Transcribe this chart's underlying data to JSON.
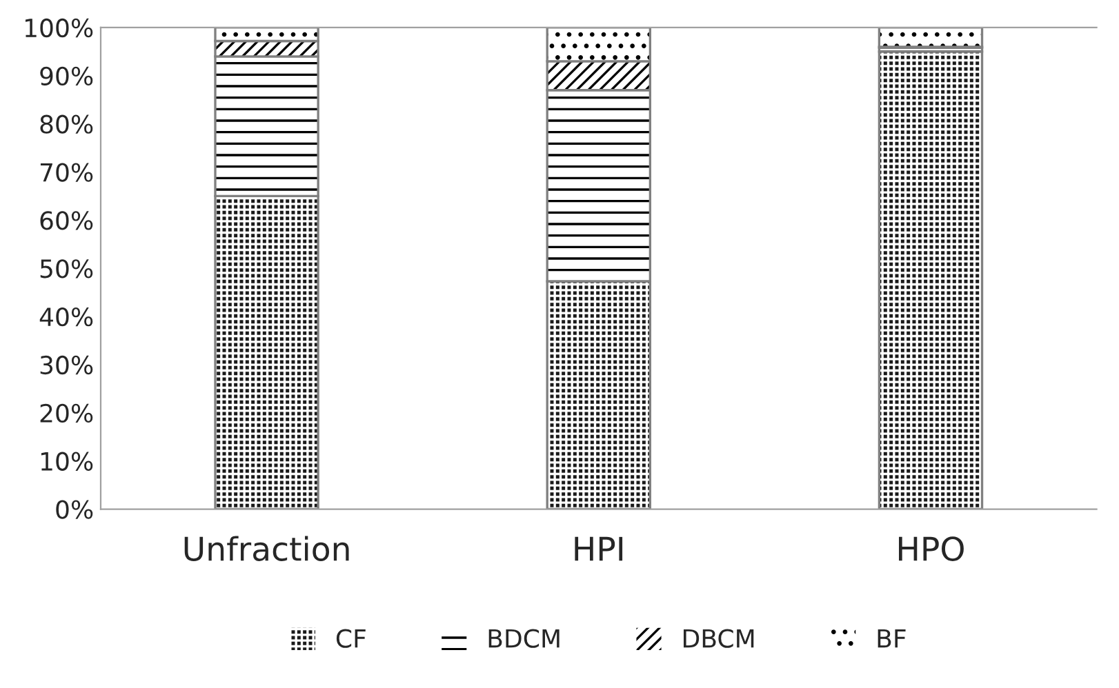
{
  "chart_data": {
    "type": "bar",
    "stacked": true,
    "categories": [
      "Unfraction",
      "HPI",
      "HPO"
    ],
    "series": [
      {
        "name": "CF",
        "color": "#1a1a1a",
        "values": [
          65,
          47.3,
          95
        ]
      },
      {
        "name": "BDCM",
        "color": "#ffffff",
        "values": [
          29,
          39.7,
          0.8
        ]
      },
      {
        "name": "DBCM",
        "color": "#ffffff",
        "values": [
          3.2,
          6,
          0.2
        ]
      },
      {
        "name": "BF",
        "color": "#ffffff",
        "values": [
          2.8,
          7,
          4
        ]
      }
    ],
    "ylim": [
      0,
      100
    ],
    "yticks": [
      {
        "value": 0,
        "label": "0%"
      },
      {
        "value": 10,
        "label": "10%"
      },
      {
        "value": 20,
        "label": "20%"
      },
      {
        "value": 30,
        "label": "30%"
      },
      {
        "value": 40,
        "label": "40%"
      },
      {
        "value": 50,
        "label": "50%"
      },
      {
        "value": 60,
        "label": "60%"
      },
      {
        "value": 70,
        "label": "70%"
      },
      {
        "value": 80,
        "label": "80%"
      },
      {
        "value": 90,
        "label": "90%"
      },
      {
        "value": 100,
        "label": "100%"
      }
    ],
    "legend": "bottom",
    "grid": false
  }
}
